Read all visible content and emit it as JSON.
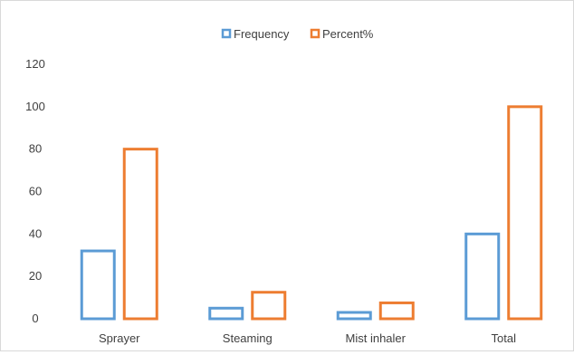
{
  "chart_data": {
    "type": "bar",
    "categories": [
      "Sprayer",
      "Steaming",
      "Mist inhaler",
      "Total"
    ],
    "series": [
      {
        "name": "Frequency",
        "values": [
          32,
          5,
          3,
          40
        ],
        "color": "#5b9bd5"
      },
      {
        "name": "Percent%",
        "values": [
          80,
          12.5,
          7.5,
          100
        ],
        "color": "#ed7d31"
      }
    ],
    "yticks": [
      0,
      20,
      40,
      60,
      80,
      100,
      120
    ],
    "ylim": [
      0,
      120
    ],
    "grid": false,
    "legend_position": "top",
    "bar_style": "outline"
  }
}
